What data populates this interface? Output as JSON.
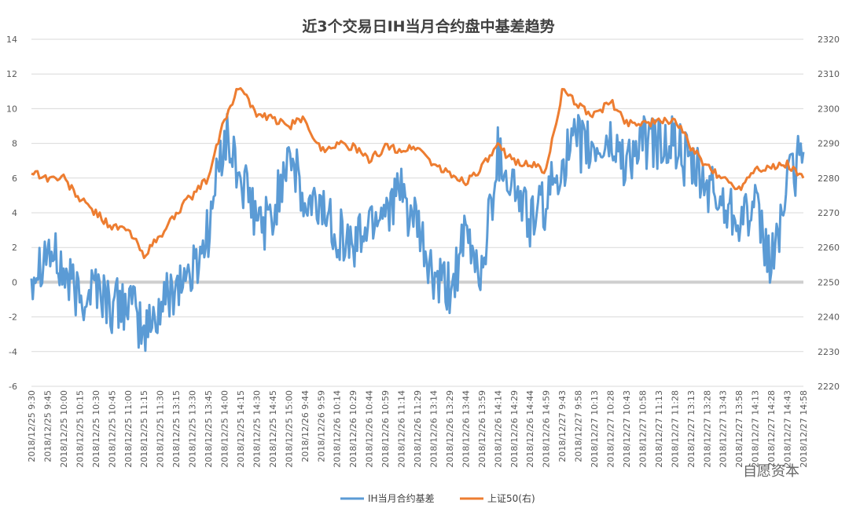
{
  "chart_data": {
    "type": "line",
    "title": "近3个交易日IH当月合约盘中基差趋势",
    "xlabel": "",
    "ylabel": "",
    "y_left": {
      "min": -6,
      "max": 14,
      "step": 2,
      "ticks": [
        "-6",
        "-4",
        "-2",
        "0",
        "2",
        "4",
        "6",
        "8",
        "10",
        "12",
        "14"
      ]
    },
    "y_right": {
      "min": 2220,
      "max": 2320,
      "step": 10,
      "ticks": [
        "2220",
        "2230",
        "2240",
        "2250",
        "2260",
        "2270",
        "2280",
        "2290",
        "2300",
        "2310",
        "2320"
      ]
    },
    "grid": true,
    "legend_position": "bottom-center",
    "categories": [
      "2018/12/25 9:30",
      "2018/12/25 9:45",
      "2018/12/25 10:00",
      "2018/12/25 10:15",
      "2018/12/25 10:30",
      "2018/12/25 10:45",
      "2018/12/25 11:00",
      "2018/12/25 11:15",
      "2018/12/25 11:30",
      "2018/12/25 13:15",
      "2018/12/25 13:30",
      "2018/12/25 13:45",
      "2018/12/25 14:00",
      "2018/12/25 14:15",
      "2018/12/25 14:30",
      "2018/12/25 14:45",
      "2018/12/25 15:00",
      "2018/12/26 9:44",
      "2018/12/26 9:59",
      "2018/12/26 10:14",
      "2018/12/26 10:29",
      "2018/12/26 10:44",
      "2018/12/26 10:59",
      "2018/12/26 11:14",
      "2018/12/26 11:29",
      "2018/12/26 13:14",
      "2018/12/26 13:29",
      "2018/12/26 13:44",
      "2018/12/26 13:59",
      "2018/12/26 14:14",
      "2018/12/26 14:29",
      "2018/12/26 14:44",
      "2018/12/26 14:59",
      "2018/12/27 9:43",
      "2018/12/27 9:58",
      "2018/12/27 10:13",
      "2018/12/27 10:28",
      "2018/12/27 10:43",
      "2018/12/27 10:58",
      "2018/12/27 11:13",
      "2018/12/27 11:28",
      "2018/12/27 13:13",
      "2018/12/27 13:28",
      "2018/12/27 13:43",
      "2018/12/27 13:58",
      "2018/12/27 14:13",
      "2018/12/27 14:28",
      "2018/12/27 14:43",
      "2018/12/27 14:58"
    ],
    "series": [
      {
        "name": "IH当月合约基差",
        "axis": "left",
        "color": "#5b9bd5",
        "values": [
          0.5,
          2.0,
          0.5,
          -1.0,
          0.0,
          -1.5,
          -1.0,
          -3.0,
          -1.5,
          0.0,
          0.5,
          3.0,
          8.5,
          6.0,
          3.5,
          3.5,
          8.0,
          4.0,
          4.5,
          3.0,
          2.0,
          3.5,
          4.5,
          5.0,
          3.0,
          0.0,
          -0.5,
          2.5,
          0.5,
          7.5,
          5.5,
          3.5,
          4.5,
          7.0,
          8.0,
          7.5,
          8.0,
          7.0,
          8.0,
          8.0,
          8.0,
          6.5,
          5.5,
          4.5,
          4.0,
          4.0,
          1.0,
          5.5,
          7.5
        ]
      },
      {
        "name": "上证50(右)",
        "axis": "right",
        "color": "#ed7d31",
        "values": [
          2282,
          2280,
          2280,
          2274,
          2270,
          2266,
          2265,
          2258,
          2263,
          2270,
          2275,
          2280,
          2297,
          2307,
          2298,
          2297,
          2295,
          2297,
          2288,
          2290,
          2289,
          2285,
          2289,
          2288,
          2289,
          2284,
          2281,
          2279,
          2283,
          2289,
          2285,
          2284,
          2282,
          2305,
          2301,
          2298,
          2302,
          2296,
          2296,
          2296,
          2297,
          2289,
          2283,
          2280,
          2277,
          2283,
          2283,
          2284,
          2280
        ]
      }
    ]
  },
  "watermark": "自愿资本"
}
